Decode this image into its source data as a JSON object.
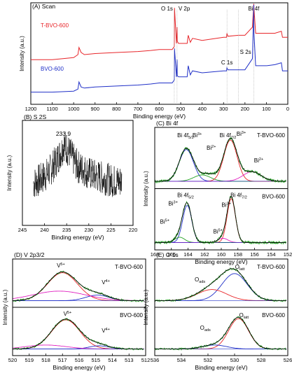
{
  "chart_data": [
    {
      "id": "A",
      "type": "line",
      "title": "(A) Scan",
      "xlabel": "Binding energy (eV)",
      "ylabel": "Intensity (a.u.)",
      "xlim": [
        1200,
        0
      ],
      "xticks": [
        "1200",
        "1100",
        "1000",
        "900",
        "800",
        "700",
        "600",
        "500",
        "400",
        "300",
        "200",
        "100",
        "0"
      ],
      "series": [
        {
          "name": "T-BVO-600",
          "color": "#e8262a",
          "x": [
            1200,
            1100,
            1000,
            980,
            975,
            965,
            950,
            900,
            800,
            700,
            640,
            600,
            540,
            530,
            529,
            520,
            517,
            516,
            510,
            470,
            465,
            455,
            445,
            400,
            300,
            286,
            284,
            280,
            230,
            200,
            165,
            159,
            158,
            150,
            100,
            60,
            30,
            25,
            0
          ],
          "y": [
            0.44,
            0.44,
            0.46,
            0.49,
            0.56,
            0.51,
            0.49,
            0.5,
            0.51,
            0.52,
            0.53,
            0.54,
            0.54,
            0.57,
            0.95,
            0.6,
            0.76,
            0.62,
            0.6,
            0.6,
            0.68,
            0.61,
            0.65,
            0.63,
            0.66,
            0.66,
            0.7,
            0.67,
            0.68,
            0.68,
            0.76,
            0.99,
            0.95,
            0.7,
            0.7,
            0.7,
            0.72,
            0.66,
            0.66
          ]
        },
        {
          "name": "BVO-600",
          "color": "#2030c8",
          "x": [
            1200,
            1100,
            1000,
            980,
            975,
            965,
            950,
            900,
            800,
            700,
            640,
            600,
            540,
            530,
            529,
            520,
            517,
            516,
            510,
            470,
            465,
            455,
            445,
            400,
            300,
            286,
            284,
            280,
            230,
            200,
            165,
            159,
            158,
            150,
            100,
            60,
            30,
            25,
            0
          ],
          "y": [
            0.12,
            0.12,
            0.13,
            0.15,
            0.22,
            0.17,
            0.16,
            0.17,
            0.18,
            0.19,
            0.2,
            0.21,
            0.21,
            0.24,
            0.55,
            0.27,
            0.44,
            0.28,
            0.27,
            0.27,
            0.38,
            0.29,
            0.33,
            0.31,
            0.33,
            0.33,
            0.36,
            0.34,
            0.34,
            0.34,
            0.45,
            0.98,
            0.7,
            0.38,
            0.38,
            0.39,
            0.41,
            0.33,
            0.33
          ]
        }
      ],
      "annotations": [
        {
          "text": "O 1s",
          "x": 530
        },
        {
          "text": "V 2p",
          "x": 517
        },
        {
          "text": "Bi 4f",
          "x": 159
        },
        {
          "text": "C 1s",
          "x": 284
        },
        {
          "text": "S 2s",
          "x": 230
        }
      ],
      "legend": [
        "T-BVO-600",
        "BVO-600"
      ]
    },
    {
      "id": "B",
      "type": "line",
      "title": "(B) S 2S",
      "xlabel": "Binding energy (eV)",
      "ylabel": "Intensity (a.u.)",
      "xlim": [
        245,
        215
      ],
      "xticks": [
        "245",
        "240",
        "235",
        "230",
        "225",
        "220"
      ],
      "peak_label": "233.9",
      "series": [
        {
          "name": "",
          "color": "#000000",
          "x": [
            242,
            240,
            238,
            236,
            234,
            233.9,
            232,
            230,
            228,
            226,
            224,
            222,
            220,
            218
          ],
          "y": [
            0.4,
            0.44,
            0.5,
            0.6,
            0.74,
            0.78,
            0.68,
            0.56,
            0.52,
            0.48,
            0.46,
            0.44,
            0.42,
            0.42
          ],
          "noise": 0.16
        }
      ]
    },
    {
      "id": "C",
      "type": "line",
      "title": "(C) Bi 4f",
      "xlabel": "Binding energy (eV)",
      "ylabel": "Intensity (a.u.)",
      "xlim": [
        168,
        152
      ],
      "xticks": [
        "168",
        "166",
        "164",
        "162",
        "160",
        "158",
        "156",
        "154",
        "152"
      ],
      "subpanels": [
        {
          "name": "T-BVO-600",
          "envelope": [
            {
              "c": 164.2,
              "h": 0.62,
              "w": 0.85
            },
            {
              "c": 158.9,
              "h": 0.8,
              "w": 0.8
            },
            {
              "c": 161.6,
              "h": 0.14,
              "w": 1.0
            },
            {
              "c": 156.3,
              "h": 0.18,
              "w": 1.1
            }
          ],
          "components": [
            {
              "color": "#2030c8",
              "c": 164.2,
              "h": 0.6,
              "w": 0.85
            },
            {
              "color": "#22a022",
              "c": 162.3,
              "h": 0.12,
              "w": 1.0
            },
            {
              "color": "#e8262a",
              "c": 158.9,
              "h": 0.78,
              "w": 0.8
            },
            {
              "color": "#e020c0",
              "c": 156.3,
              "h": 0.18,
              "w": 1.1
            }
          ],
          "labels": [
            {
              "text": "Bi 4f",
              "sub": "5/2",
              "x": 164.3
            },
            {
              "text": "Bi",
              "sup": "3+",
              "x": 162.9
            },
            {
              "text": "Bi 4f",
              "sub": "7/2",
              "x": 159.2
            },
            {
              "text": "Bi",
              "sup": "3+",
              "x": 157.6
            },
            {
              "text": "Bi",
              "sup": "2+",
              "x": 161.2
            },
            {
              "text": "Bi",
              "sup": "2+",
              "x": 155.5
            }
          ]
        },
        {
          "name": "BVO-600",
          "envelope": [
            {
              "c": 164.1,
              "h": 0.72,
              "w": 0.55
            },
            {
              "c": 158.8,
              "h": 0.85,
              "w": 0.5
            },
            {
              "c": 165.0,
              "h": 0.1,
              "w": 0.6
            },
            {
              "c": 159.8,
              "h": 0.08,
              "w": 0.6
            }
          ],
          "components": [
            {
              "color": "#2030c8",
              "c": 164.1,
              "h": 0.7,
              "w": 0.55
            },
            {
              "color": "#22a022",
              "c": 165.0,
              "h": 0.1,
              "w": 0.6
            },
            {
              "color": "#e8262a",
              "c": 158.8,
              "h": 0.83,
              "w": 0.5
            },
            {
              "color": "#e020c0",
              "c": 159.8,
              "h": 0.08,
              "w": 0.6
            }
          ],
          "labels": [
            {
              "text": "Bi 4f",
              "sub": "5/2",
              "x": 164.3
            },
            {
              "text": "Bi",
              "sup": "3+",
              "x": 165.8
            },
            {
              "text": "Bi 4f",
              "sub": "7/2",
              "x": 157.9
            },
            {
              "text": "Bi",
              "sup": "3+",
              "x": 159.4
            },
            {
              "text": "Bi",
              "sup": "5+",
              "x": 166.8
            },
            {
              "text": "Bi",
              "sup": "5+",
              "x": 160.4
            }
          ]
        }
      ]
    },
    {
      "id": "D",
      "type": "line",
      "title": "(D) V 2p3/2",
      "xlabel": "Binding energy (eV)",
      "ylabel": "Intensity (a.u.)",
      "xlim": [
        520,
        512
      ],
      "xticks": [
        "520",
        "519",
        "518",
        "517",
        "516",
        "515",
        "514",
        "513",
        "512"
      ],
      "subpanels": [
        {
          "name": "T-BVO-600",
          "envelope": [
            {
              "c": 517.0,
              "h": 0.72,
              "w": 0.9
            },
            {
              "c": 514.9,
              "h": 0.16,
              "w": 0.7
            }
          ],
          "components": [
            {
              "color": "#e8262a",
              "c": 517.0,
              "h": 0.7,
              "w": 0.9
            },
            {
              "color": "#2030c8",
              "c": 514.9,
              "h": 0.14,
              "w": 0.7
            },
            {
              "color": "#e020c0",
              "c": 517.2,
              "h": 0.24,
              "w": 1.6
            }
          ],
          "labels": [
            {
              "text": "V",
              "sup": "5+",
              "x": 517.1
            },
            {
              "text": "V",
              "sup": "4+",
              "x": 514.4
            }
          ]
        },
        {
          "name": "BVO-600",
          "envelope": [
            {
              "c": 516.8,
              "h": 0.75,
              "w": 0.85
            },
            {
              "c": 514.8,
              "h": 0.1,
              "w": 0.6
            }
          ],
          "components": [
            {
              "color": "#e8262a",
              "c": 516.8,
              "h": 0.73,
              "w": 0.85
            },
            {
              "color": "#2030c8",
              "c": 514.8,
              "h": 0.08,
              "w": 0.6
            },
            {
              "color": "#e020c0",
              "c": 518.0,
              "h": 0.1,
              "w": 1.2
            }
          ],
          "labels": [
            {
              "text": "V",
              "sup": "5+",
              "x": 516.7
            },
            {
              "text": "V",
              "sup": "4+",
              "x": 514.4
            }
          ]
        }
      ]
    },
    {
      "id": "E",
      "type": "line",
      "title": "(E) O 1s",
      "xlabel": "Binding energy (eV)",
      "ylabel": "Intensity (a.u.)",
      "xlim": [
        536,
        526
      ],
      "xticks": [
        "536",
        "534",
        "532",
        "530",
        "528",
        "526"
      ],
      "subpanels": [
        {
          "name": "T-BVO-600",
          "envelope": [
            {
              "c": 530.0,
              "h": 0.7,
              "w": 0.95
            },
            {
              "c": 531.7,
              "h": 0.3,
              "w": 1.1
            }
          ],
          "components": [
            {
              "color": "#2030c8",
              "c": 530.0,
              "h": 0.68,
              "w": 0.95
            },
            {
              "color": "#e8262a",
              "c": 531.7,
              "h": 0.28,
              "w": 1.1
            }
          ],
          "labels": [
            {
              "text": "O",
              "sub": "ads",
              "x": 532.6
            },
            {
              "text": "O",
              "sub": "latt",
              "x": 529.6
            }
          ]
        },
        {
          "name": "BVO-600",
          "envelope": [
            {
              "c": 529.7,
              "h": 0.78,
              "w": 0.75
            },
            {
              "c": 531.5,
              "h": 0.1,
              "w": 0.9
            }
          ],
          "components": [
            {
              "color": "#e8262a",
              "c": 529.7,
              "h": 0.76,
              "w": 0.75
            },
            {
              "color": "#2030c8",
              "c": 531.5,
              "h": 0.1,
              "w": 0.9
            }
          ],
          "labels": [
            {
              "text": "O",
              "sub": "ads",
              "x": 532.2
            },
            {
              "text": "O",
              "sub": "latt",
              "x": 529.3
            }
          ]
        }
      ]
    }
  ]
}
